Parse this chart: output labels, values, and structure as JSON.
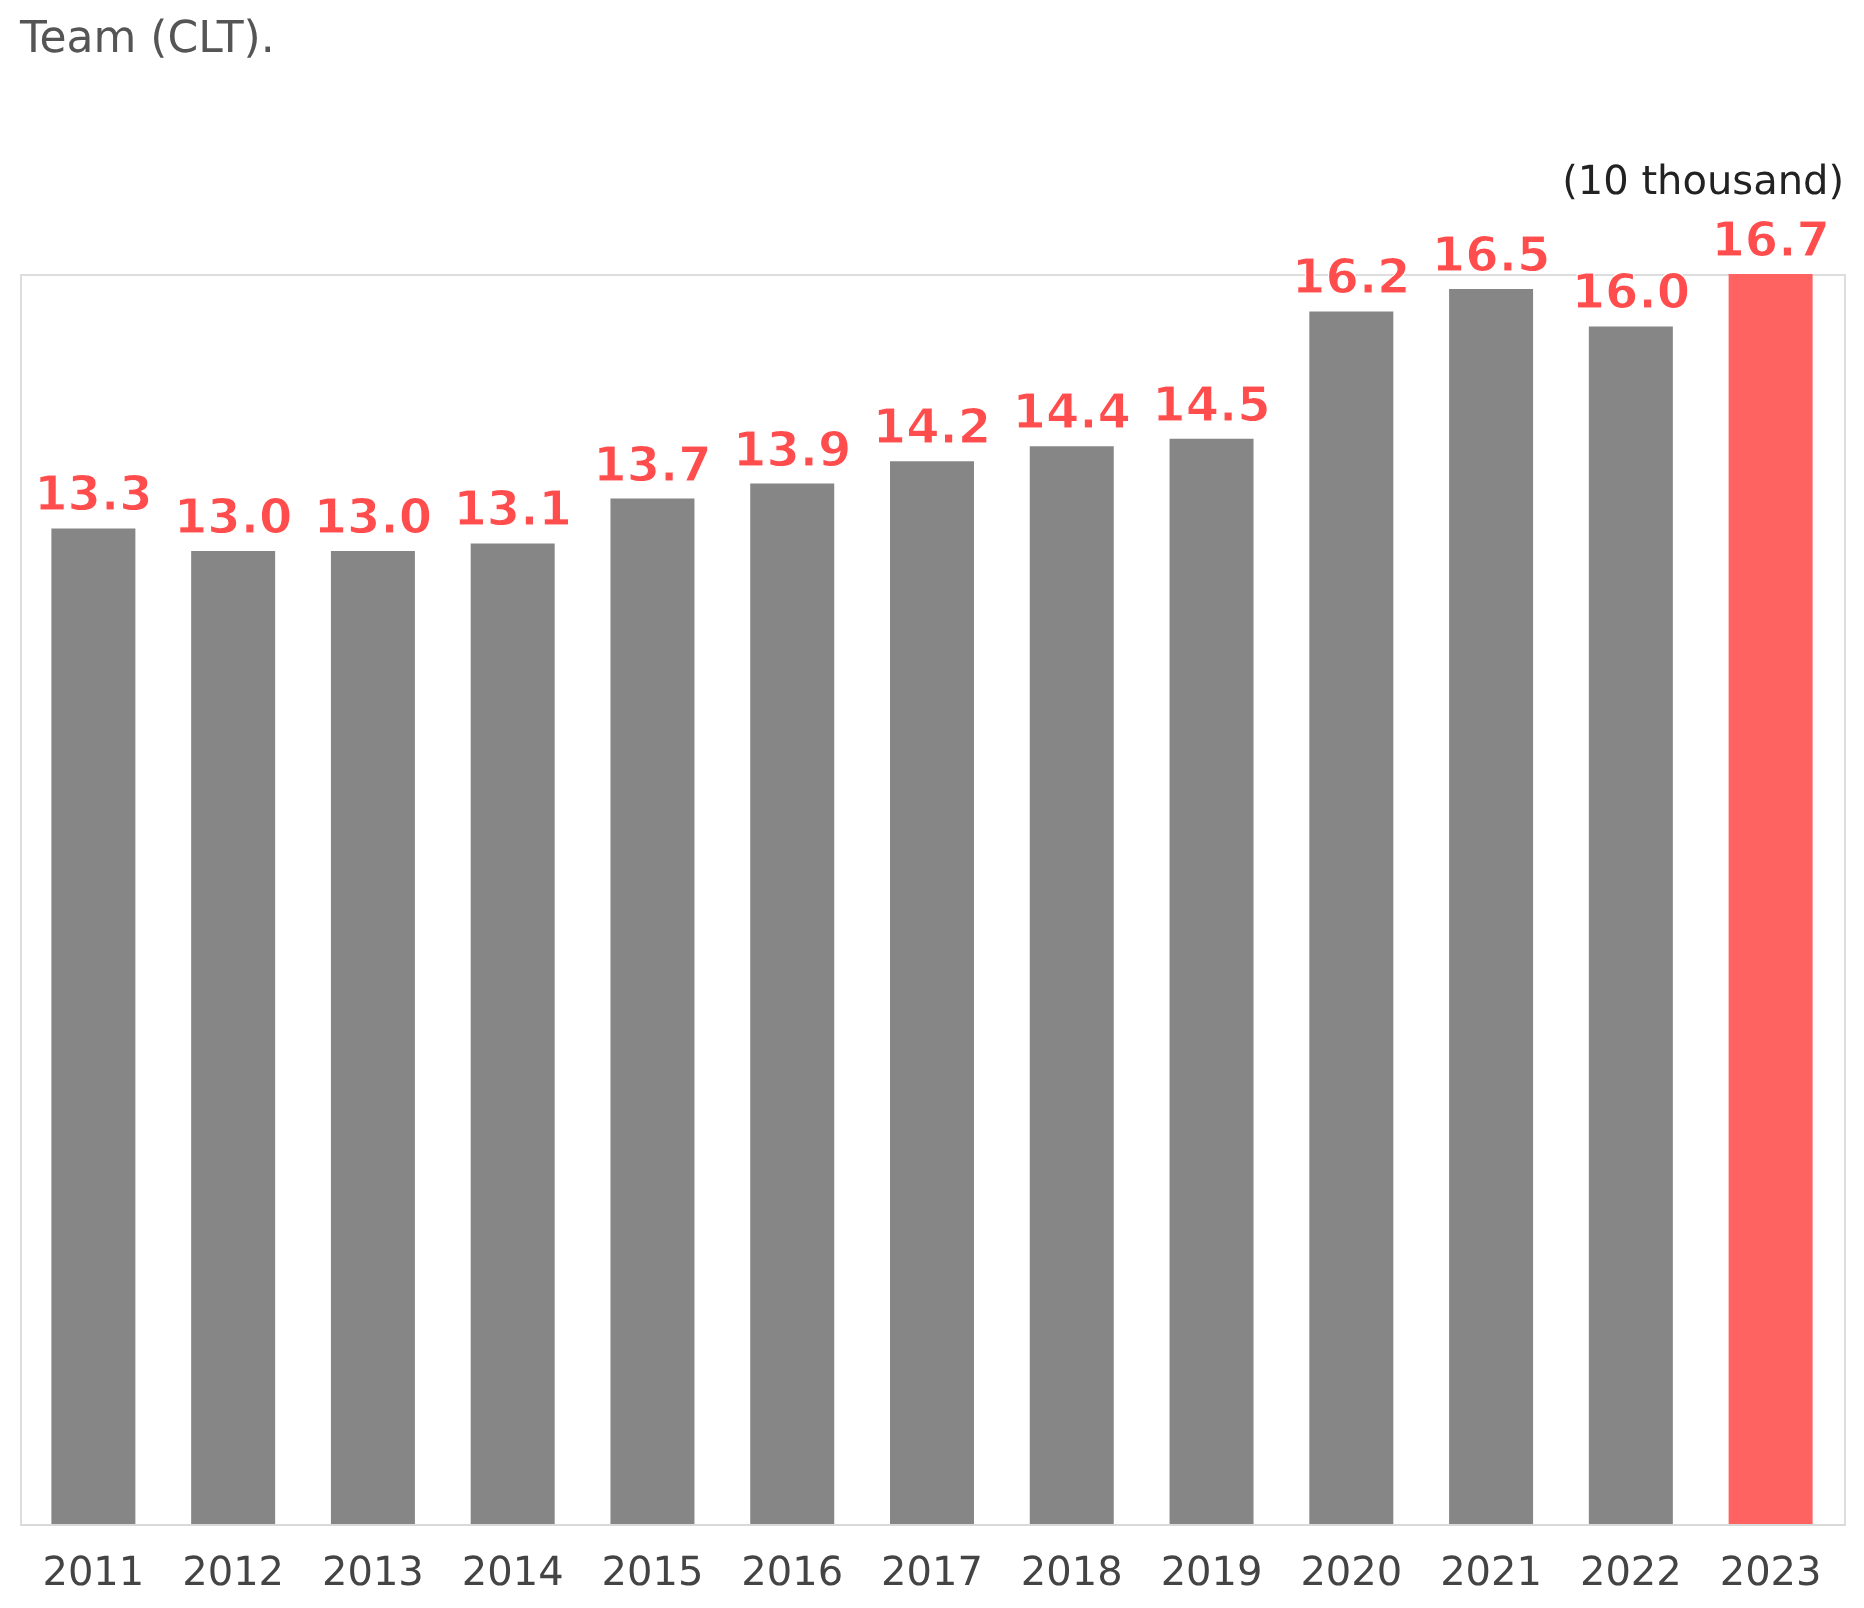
{
  "chart_data": {
    "type": "bar",
    "categories": [
      "2011",
      "2012",
      "2013",
      "2014",
      "2015",
      "2016",
      "2017",
      "2018",
      "2019",
      "2020",
      "2021",
      "2022",
      "2023"
    ],
    "values": [
      13.3,
      13.0,
      13.0,
      13.1,
      13.7,
      13.9,
      14.2,
      14.4,
      14.5,
      16.2,
      16.5,
      16.0,
      16.7
    ],
    "colors": [
      "#868686",
      "#868686",
      "#868686",
      "#868686",
      "#868686",
      "#868686",
      "#868686",
      "#868686",
      "#868686",
      "#868686",
      "#868686",
      "#868686",
      "#ff6361"
    ],
    "value_labels": [
      "13.3",
      "13.0",
      "13.0",
      "13.1",
      "13.7",
      "13.9",
      "14.2",
      "14.4",
      "14.5",
      "16.2",
      "16.5",
      "16.0",
      "16.7"
    ],
    "annotations": [
      "Team (CLT).",
      "(10 thousand)"
    ]
  }
}
